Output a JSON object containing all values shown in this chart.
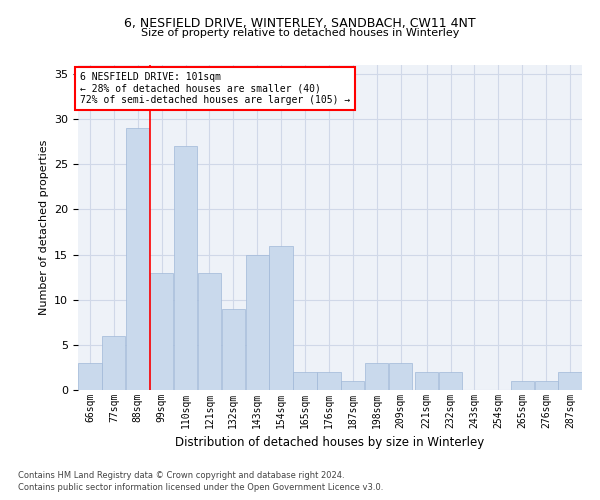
{
  "title1": "6, NESFIELD DRIVE, WINTERLEY, SANDBACH, CW11 4NT",
  "title2": "Size of property relative to detached houses in Winterley",
  "xlabel": "Distribution of detached houses by size in Winterley",
  "ylabel": "Number of detached properties",
  "footer1": "Contains HM Land Registry data © Crown copyright and database right 2024.",
  "footer2": "Contains public sector information licensed under the Open Government Licence v3.0.",
  "annotation_title": "6 NESFIELD DRIVE: 101sqm",
  "annotation_line1": "← 28% of detached houses are smaller (40)",
  "annotation_line2": "72% of semi-detached houses are larger (105) →",
  "bar_color": "#c9d9ec",
  "bar_edge_color": "#a0b8d8",
  "grid_color": "#d0d8e8",
  "bg_color": "#eef2f8",
  "vline_x": 99,
  "vline_color": "red",
  "categories": [
    "66sqm",
    "77sqm",
    "88sqm",
    "99sqm",
    "110sqm",
    "121sqm",
    "132sqm",
    "143sqm",
    "154sqm",
    "165sqm",
    "176sqm",
    "187sqm",
    "198sqm",
    "209sqm",
    "221sqm",
    "232sqm",
    "243sqm",
    "254sqm",
    "265sqm",
    "276sqm",
    "287sqm"
  ],
  "bin_edges": [
    66,
    77,
    88,
    99,
    110,
    121,
    132,
    143,
    154,
    165,
    176,
    187,
    198,
    209,
    221,
    232,
    243,
    254,
    265,
    276,
    287,
    298
  ],
  "values": [
    3,
    6,
    29,
    13,
    27,
    13,
    9,
    15,
    16,
    2,
    2,
    1,
    3,
    3,
    2,
    2,
    0,
    0,
    1,
    1,
    2
  ],
  "ylim": [
    0,
    36
  ],
  "yticks": [
    0,
    5,
    10,
    15,
    20,
    25,
    30,
    35
  ]
}
